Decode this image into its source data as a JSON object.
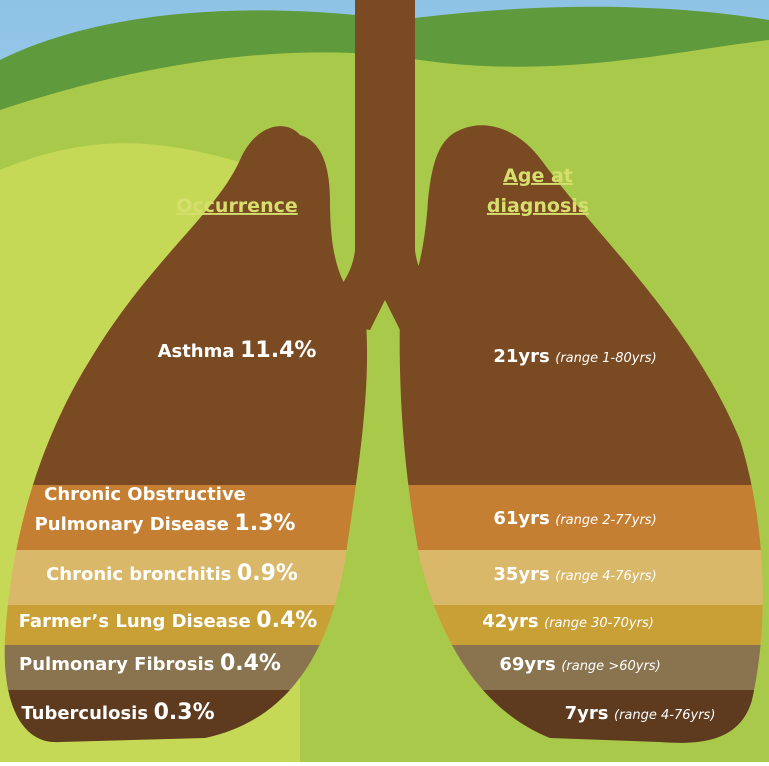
{
  "headers": {
    "occurrence": "Occurrence",
    "age_at_diagnosis": [
      "Age at",
      "diagnosis"
    ]
  },
  "rows": [
    {
      "name": [
        "Asthma"
      ],
      "occurrence": "11.4%",
      "age": "21yrs",
      "range": "(range 1-80yrs)"
    },
    {
      "name": [
        "Chronic Obstructive",
        "Pulmonary Disease"
      ],
      "occurrence": "1.3%",
      "age": "61yrs",
      "range": "(range 2-77yrs)"
    },
    {
      "name": [
        "Chronic bronchitis"
      ],
      "occurrence": "0.9%",
      "age": "35yrs",
      "range": "(range 4-76yrs)"
    },
    {
      "name": [
        "Farmer’s Lung Disease"
      ],
      "occurrence": "0.4%",
      "age": "42yrs",
      "range": "(range 30-70yrs)"
    },
    {
      "name": [
        "Pulmonary Fibrosis"
      ],
      "occurrence": "0.4%",
      "age": "69yrs",
      "range": "(range >60yrs)"
    },
    {
      "name": [
        "Tuberculosis"
      ],
      "occurrence": "0.3%",
      "age": "7yrs",
      "range": "(range 4-76yrs)"
    }
  ]
}
